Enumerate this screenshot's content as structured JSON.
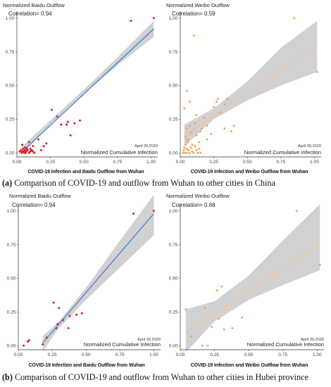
{
  "chart_data": [
    {
      "type": "scatter",
      "title": "Normalized Baidu Outflow",
      "annotation": "Correlation= 0.94",
      "date_label": "April 30,2020",
      "xlabel": "Normalized Cumulative Infection",
      "subtitle": "COVID-19 Infection and Baidu Outflow from Wuhan",
      "xlim": [
        0,
        1.05
      ],
      "ylim": [
        -0.03,
        1.03
      ],
      "xticks": [
        "0.00",
        "0.25",
        "0.50",
        "0.75",
        "1.00"
      ],
      "yticks": [
        "0.00",
        "0.25",
        "0.50",
        "0.75",
        "1.00"
      ],
      "point_color": "#e8141e",
      "line_color": "#2a6fd6",
      "band_color": "#c9c9c9",
      "fit": {
        "x0": 0.04,
        "y0": 0.01,
        "x1": 1.02,
        "y1": 0.92
      },
      "band": [
        [
          0.04,
          -0.01,
          0.05
        ],
        [
          0.25,
          0.21,
          0.24
        ],
        [
          0.5,
          0.44,
          0.47
        ],
        [
          0.75,
          0.65,
          0.71
        ],
        [
          1.02,
          0.86,
          0.98
        ]
      ],
      "x": [
        0.02,
        0.03,
        0.035,
        0.04,
        0.045,
        0.05,
        0.055,
        0.06,
        0.065,
        0.07,
        0.075,
        0.08,
        0.09,
        0.1,
        0.11,
        0.12,
        0.13,
        0.04,
        0.06,
        0.09,
        0.1,
        0.12,
        0.16,
        0.18,
        0.2,
        0.22,
        0.26,
        0.3,
        0.33,
        0.37,
        0.38,
        0.4,
        0.43,
        0.47,
        0.85,
        1.02
      ],
      "y": [
        0.01,
        0.02,
        0.0,
        0.01,
        0.03,
        0.01,
        0.0,
        0.02,
        0.0,
        0.01,
        0.03,
        0.02,
        0.0,
        0.01,
        0.02,
        0.01,
        0.0,
        0.06,
        0.04,
        0.08,
        0.03,
        0.05,
        0.1,
        0.02,
        0.05,
        0.07,
        0.32,
        0.27,
        0.21,
        0.21,
        0.23,
        0.13,
        0.22,
        0.24,
        0.98,
        1.0
      ]
    },
    {
      "type": "scatter",
      "title": "Normalized Weibo Outflow",
      "annotation": "Correlation= 0.59",
      "date_label": "April 30,2020",
      "xlabel": "Normalized Cumulative Infection",
      "subtitle": "COVID-19 Infection and Weibo Outflow from Wuhan",
      "xlim": [
        0,
        1.05
      ],
      "ylim": [
        -0.03,
        1.03
      ],
      "xticks": [
        "0.00",
        "0.25",
        "0.50",
        "0.75",
        "1.00"
      ],
      "yticks": [
        "0.00",
        "0.25",
        "0.50",
        "0.75",
        "1.00"
      ],
      "point_color": "#f5a35a",
      "line_color": "#f9c08c",
      "band_color": "#c9c9c9",
      "fit": {
        "x0": 0.03,
        "y0": 0.13,
        "x1": 1.02,
        "y1": 0.79
      },
      "band": [
        [
          0.03,
          0.05,
          0.21
        ],
        [
          0.25,
          0.25,
          0.33
        ],
        [
          0.5,
          0.39,
          0.53
        ],
        [
          0.75,
          0.5,
          0.78
        ],
        [
          1.02,
          0.6,
          0.98
        ]
      ],
      "x": [
        0.02,
        0.025,
        0.03,
        0.035,
        0.04,
        0.045,
        0.05,
        0.055,
        0.06,
        0.07,
        0.08,
        0.09,
        0.1,
        0.11,
        0.12,
        0.13,
        0.14,
        0.15,
        0.04,
        0.05,
        0.06,
        0.07,
        0.08,
        0.09,
        0.11,
        0.12,
        0.14,
        0.16,
        0.18,
        0.2,
        0.23,
        0.25,
        0.28,
        0.3,
        0.33,
        0.38,
        0.4,
        0.03,
        0.05,
        0.07,
        0.1,
        0.12,
        0.15,
        0.2,
        0.27,
        0.33,
        0.35,
        0.85,
        1.02
      ],
      "y": [
        0.0,
        0.02,
        0.04,
        0.0,
        0.06,
        0.03,
        0.0,
        0.08,
        0.02,
        0.0,
        0.04,
        0.01,
        0.0,
        0.05,
        0.02,
        0.0,
        0.03,
        0.0,
        0.12,
        0.18,
        0.1,
        0.2,
        0.15,
        0.06,
        0.22,
        0.13,
        0.08,
        0.18,
        0.26,
        0.2,
        0.14,
        0.34,
        0.4,
        0.3,
        0.18,
        0.16,
        0.2,
        0.33,
        0.46,
        0.38,
        0.87,
        0.28,
        0.16,
        0.1,
        0.38,
        0.36,
        0.4,
        1.0,
        0.6
      ]
    },
    {
      "type": "scatter",
      "title": "Normalized Baidu Outflow",
      "annotation": "Correlation= 0.94",
      "date_label": "April 30,2020",
      "xlabel": "Normalized Cumulative Infection",
      "subtitle": "COVID-19 Infection and Baidu Outflow from Wuhan",
      "xlim": [
        0,
        1.05
      ],
      "ylim": [
        -0.03,
        1.03
      ],
      "xticks": [
        "0.00",
        "0.25",
        "0.50",
        "0.75",
        "1.00"
      ],
      "yticks": [
        "0.00",
        "0.25",
        "0.50",
        "0.75",
        "1.00"
      ],
      "point_color": "#e8141e",
      "line_color": "#2a6fd6",
      "band_color": "#c9c9c9",
      "fit": {
        "x0": 0.18,
        "y0": 0.02,
        "x1": 1.0,
        "y1": 0.98
      },
      "band": [
        [
          0.18,
          -0.04,
          0.07
        ],
        [
          0.3,
          0.13,
          0.18
        ],
        [
          0.5,
          0.34,
          0.43
        ],
        [
          0.75,
          0.58,
          0.78
        ],
        [
          1.0,
          0.82,
          1.12
        ]
      ],
      "x": [
        0.04,
        0.07,
        0.08,
        0.18,
        0.21,
        0.26,
        0.28,
        0.29,
        0.3,
        0.33,
        0.37,
        0.38,
        0.43,
        0.47,
        0.85,
        1.0
      ],
      "y": [
        0.0,
        0.03,
        0.04,
        0.01,
        0.06,
        0.32,
        0.13,
        0.16,
        0.28,
        0.19,
        0.13,
        0.22,
        0.23,
        0.24,
        0.98,
        1.0
      ]
    },
    {
      "type": "scatter",
      "title": "Normalized Weibo Outflow",
      "annotation": "Correlation= 0.68",
      "date_label": "April 30,2020",
      "xlabel": "Normalized Cumulative Infection",
      "subtitle": "COVID-19 Infection and Weibo Outflow from Wuhan",
      "xlim": [
        0,
        1.05
      ],
      "ylim": [
        -0.03,
        1.03
      ],
      "xticks": [
        "0.00",
        "0.25",
        "0.50",
        "0.75",
        "1.00"
      ],
      "yticks": [
        "0.00",
        "0.25",
        "0.50",
        "0.75",
        "1.00"
      ],
      "point_color": "#f5a35a",
      "line_color": "#f9c08c",
      "band_color": "#c9c9c9",
      "fit": {
        "x0": 0.04,
        "y0": 0.1,
        "x1": 1.02,
        "y1": 0.75
      },
      "band": [
        [
          0.04,
          -0.05,
          0.27
        ],
        [
          0.25,
          0.18,
          0.33
        ],
        [
          0.5,
          0.34,
          0.52
        ],
        [
          0.75,
          0.45,
          0.78
        ],
        [
          1.02,
          0.56,
          1.05
        ]
      ],
      "x": [
        0.04,
        0.08,
        0.16,
        0.18,
        0.2,
        0.23,
        0.27,
        0.28,
        0.3,
        0.32,
        0.38,
        0.45,
        0.85,
        1.02
      ],
      "y": [
        0.27,
        0.07,
        0.0,
        0.28,
        0.0,
        0.14,
        0.41,
        0.2,
        0.44,
        0.12,
        0.13,
        0.21,
        1.0,
        0.6
      ]
    }
  ],
  "captions": [
    {
      "letter": "(a)",
      "text": " Comparison of COVID-19 and outflow from Wuhan to other cities in China"
    },
    {
      "letter": "(b)",
      "text": " Comparison of COVID-19 and outflow from Wuhan to other cities in Hubei province"
    }
  ]
}
